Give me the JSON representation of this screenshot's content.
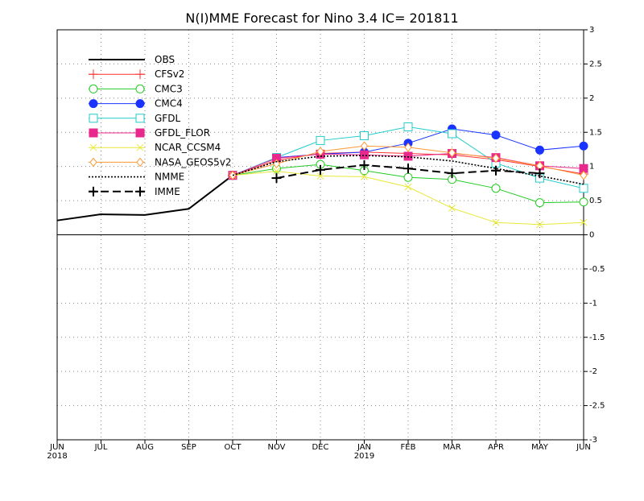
{
  "chart_data": {
    "type": "line",
    "title": "N(I)MME Forecast for Nino 3.4   IC= 201811",
    "xlabel": "",
    "ylabel": "",
    "x_ticks": [
      "JUN",
      "JUL",
      "AUG",
      "SEP",
      "OCT",
      "NOV",
      "DEC",
      "JAN",
      "FEB",
      "MAR",
      "APR",
      "MAY",
      "JUN"
    ],
    "x_year_labels": [
      {
        "index": 0,
        "label": "2018"
      },
      {
        "index": 7,
        "label": "2019"
      }
    ],
    "y_ticks": [
      "3",
      "2.5",
      "2",
      "1.5",
      "1",
      "0.5",
      "0",
      "-0.5",
      "-1",
      "-1.5",
      "-2",
      "-2.5",
      "-3"
    ],
    "ylim": [
      -3,
      3
    ],
    "grid": true,
    "legend_position": "top-left",
    "series": [
      {
        "name": "OBS",
        "color": "#000000",
        "marker": "none",
        "dash": "solid",
        "x": [
          0,
          1,
          2,
          3,
          4
        ],
        "values": [
          0.21,
          0.3,
          0.29,
          0.38,
          0.87
        ]
      },
      {
        "name": "CFSv2",
        "color": "#ff3030",
        "marker": "plus",
        "dash": "solid",
        "x": [
          4,
          5,
          6,
          7,
          8,
          9,
          10,
          11,
          12
        ],
        "values": [
          0.87,
          1.09,
          1.19,
          1.21,
          1.19,
          1.17,
          1.1,
          1.0,
          0.89
        ]
      },
      {
        "name": "CMC3",
        "color": "#22cc22",
        "marker": "circle-open",
        "dash": "solid",
        "x": [
          4,
          5,
          6,
          7,
          8,
          9,
          10,
          11,
          12
        ],
        "values": [
          0.87,
          0.97,
          1.03,
          0.94,
          0.84,
          0.81,
          0.68,
          0.47,
          0.48
        ]
      },
      {
        "name": "CMC4",
        "color": "#1a33ff",
        "marker": "circle-filled",
        "dash": "solid",
        "x": [
          4,
          5,
          6,
          7,
          8,
          9,
          10,
          11,
          12
        ],
        "values": [
          0.87,
          1.13,
          1.18,
          1.21,
          1.34,
          1.55,
          1.46,
          1.24,
          1.3
        ]
      },
      {
        "name": "GFDL",
        "color": "#22cccc",
        "marker": "square-open",
        "dash": "solid",
        "x": [
          4,
          5,
          6,
          7,
          8,
          9,
          10,
          11,
          12
        ],
        "values": [
          0.87,
          1.13,
          1.38,
          1.45,
          1.58,
          1.48,
          1.05,
          0.83,
          0.68
        ]
      },
      {
        "name": "GFDL_FLOR",
        "color": "#e8288c",
        "marker": "square-filled",
        "dash": "solid",
        "x": [
          4,
          5,
          6,
          7,
          8,
          9,
          10,
          11,
          12
        ],
        "values": [
          0.87,
          1.12,
          1.18,
          1.17,
          1.15,
          1.19,
          1.13,
          1.01,
          0.97
        ]
      },
      {
        "name": "NCAR_CCSM4",
        "color": "#e8e83a",
        "marker": "x",
        "dash": "solid",
        "x": [
          4,
          5,
          6,
          7,
          8,
          9,
          10,
          11,
          12
        ],
        "values": [
          0.87,
          0.93,
          0.86,
          0.85,
          0.7,
          0.39,
          0.18,
          0.15,
          0.18
        ]
      },
      {
        "name": "NASA_GEOS5v2",
        "color": "#ff9933",
        "marker": "diamond-open",
        "dash": "solid",
        "x": [
          4,
          5,
          6,
          7,
          8,
          9,
          10,
          11,
          12
        ],
        "values": [
          0.87,
          1.04,
          1.22,
          1.3,
          1.28,
          1.2,
          1.12,
          1.01,
          0.87
        ]
      },
      {
        "name": "NMME",
        "color": "#000000",
        "marker": "none",
        "dash": "dotted",
        "x": [
          4,
          5,
          6,
          7,
          8,
          9,
          10,
          11,
          12
        ],
        "values": [
          0.87,
          1.07,
          1.15,
          1.16,
          1.14,
          1.08,
          0.97,
          0.86,
          0.74
        ]
      },
      {
        "name": "IMME",
        "color": "#000000",
        "marker": "plus-bold",
        "dash": "dashed",
        "x": [
          5,
          6,
          7,
          8,
          9,
          10,
          11
        ],
        "values": [
          0.83,
          0.95,
          1.02,
          0.97,
          0.9,
          0.94,
          0.9
        ]
      }
    ]
  }
}
